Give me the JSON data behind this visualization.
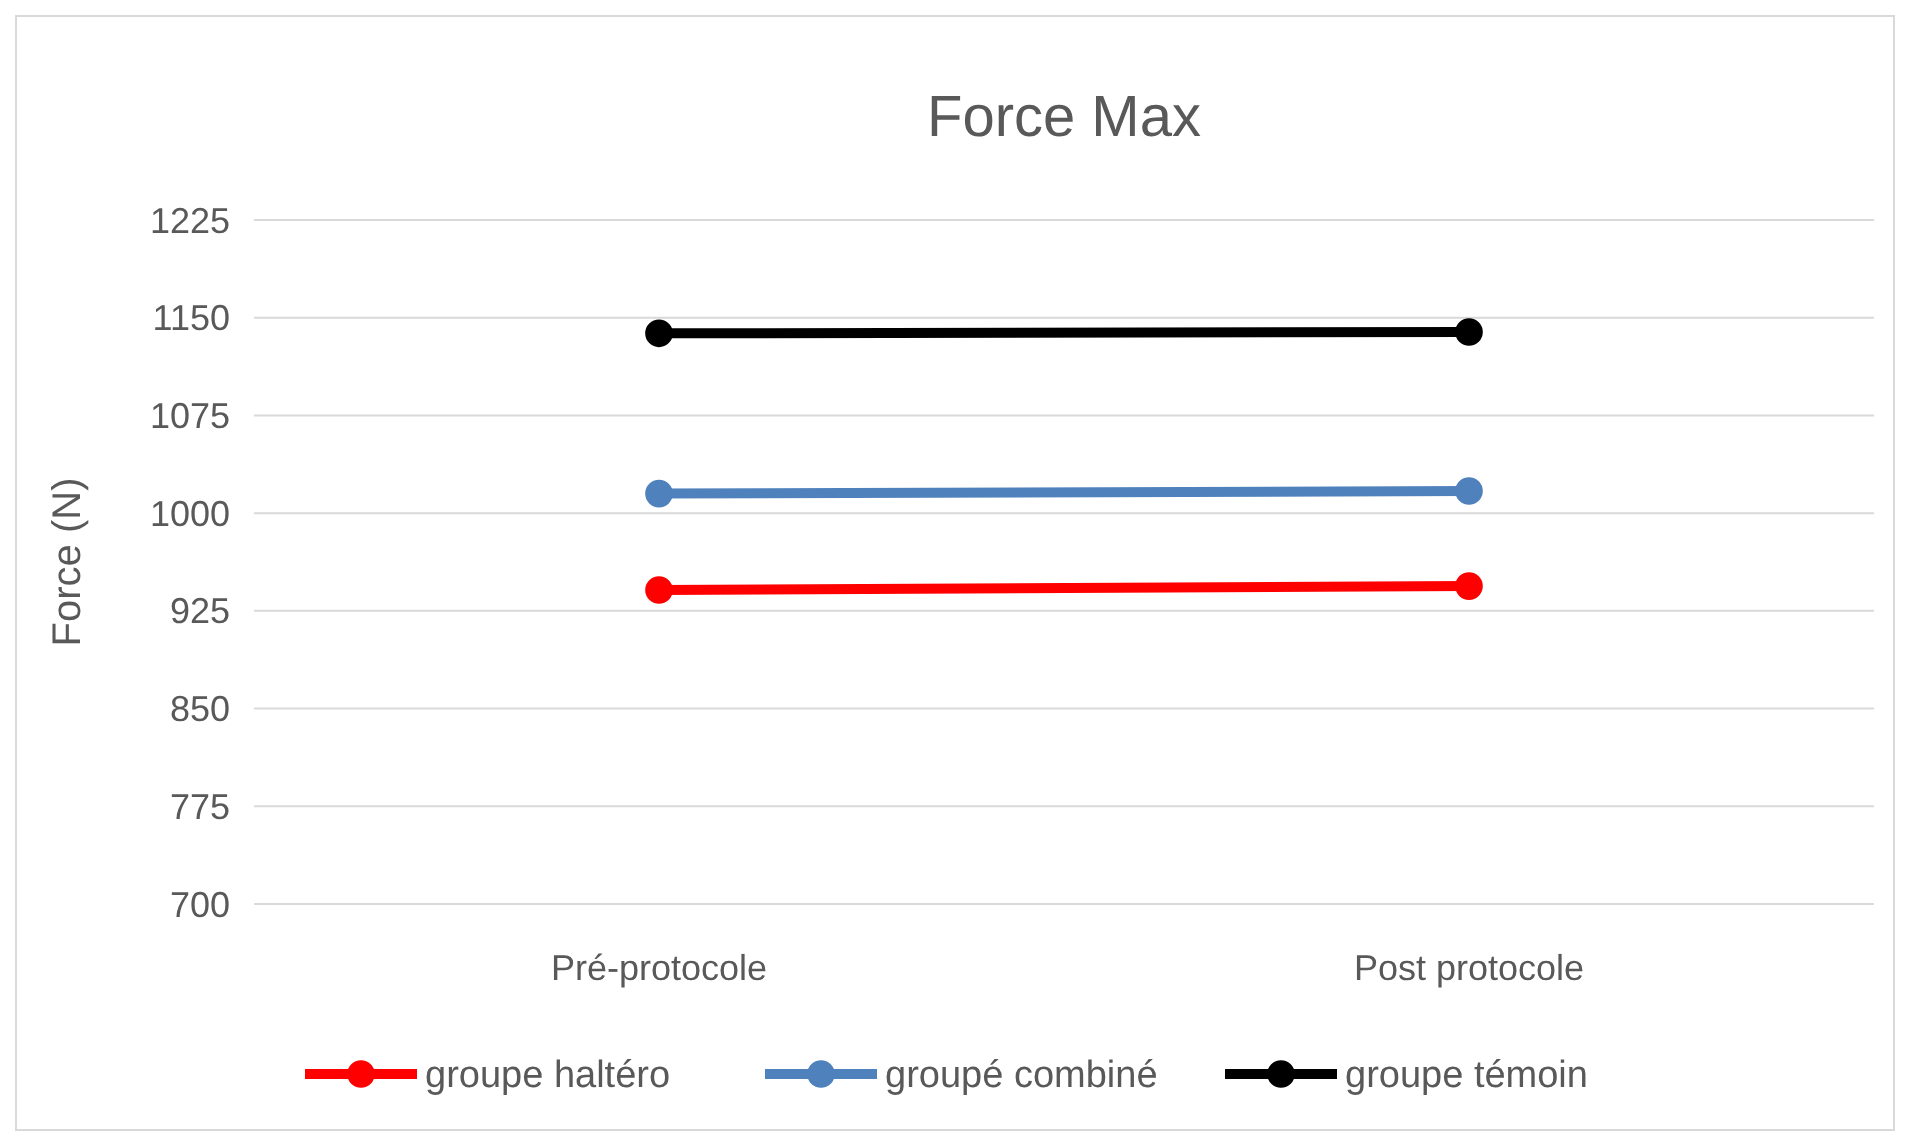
{
  "chart_data": {
    "type": "line",
    "title": "Force Max",
    "ylabel": "Force (N)",
    "categories": [
      "Pré-protocole",
      "Post protocole"
    ],
    "series": [
      {
        "name": "groupe haltéro",
        "color": "#ff0000",
        "values": [
          941,
          944
        ]
      },
      {
        "name": "groupé combiné",
        "color": "#4f81bd",
        "values": [
          1015,
          1017
        ]
      },
      {
        "name": "groupe témoin",
        "color": "#000000",
        "values": [
          1138,
          1139
        ]
      }
    ],
    "ylim": [
      700,
      1225
    ],
    "yticks": [
      700,
      775,
      850,
      925,
      1000,
      1075,
      1150,
      1225
    ],
    "grid": "y",
    "legend": "bottom",
    "marker": "circle",
    "line_style": "solid"
  }
}
